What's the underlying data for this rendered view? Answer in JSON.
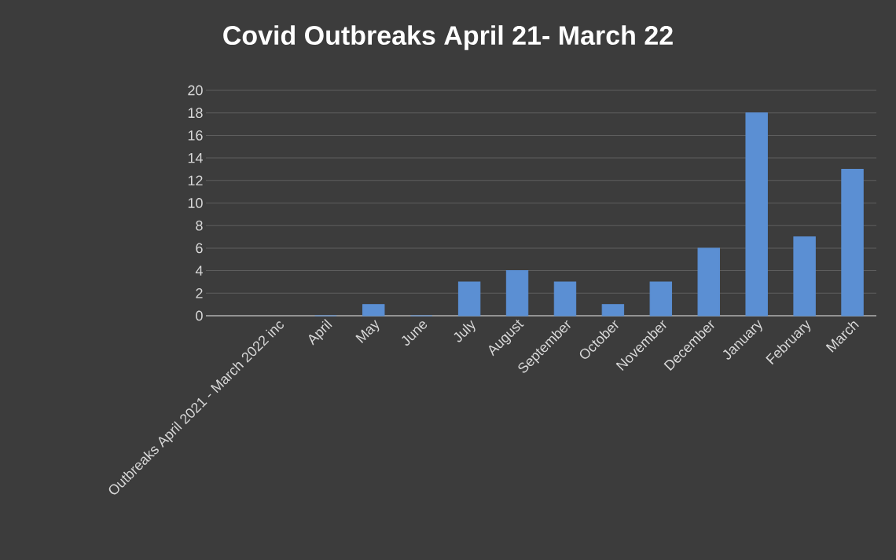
{
  "chart_data": {
    "type": "bar",
    "title": "Covid Outbreaks April 21- March 22",
    "categories": [
      "Outbreaks April 2021 - March 2022 inc",
      "April",
      "May",
      "June",
      "July",
      "August",
      "September",
      "October",
      "November",
      "December",
      "January",
      "February",
      "March"
    ],
    "values": [
      null,
      0,
      1,
      0,
      3,
      4,
      3,
      1,
      3,
      6,
      18,
      7,
      13
    ],
    "color": "#5b8fd3",
    "ylim": [
      0,
      20
    ],
    "yticks": [
      0,
      2,
      4,
      6,
      8,
      10,
      12,
      14,
      16,
      18,
      20
    ],
    "grid": "y"
  }
}
